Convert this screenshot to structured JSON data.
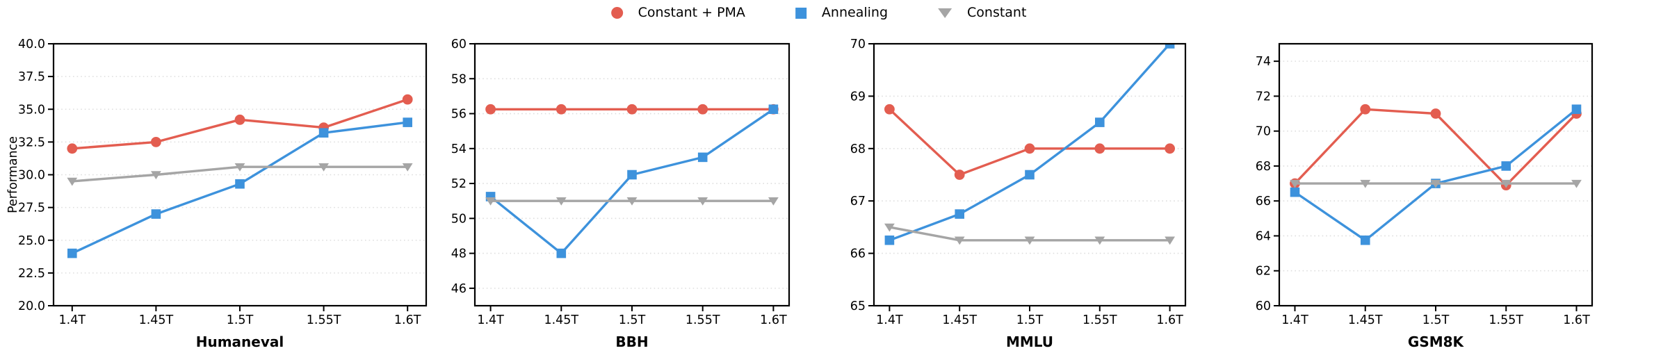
{
  "legend": {
    "items": [
      {
        "label": "Constant + PMA",
        "marker": "circle-marker-icon",
        "color": "#e35d50"
      },
      {
        "label": "Annealing",
        "marker": "square-marker-icon",
        "color": "#3d92dc"
      },
      {
        "label": "Constant",
        "marker": "triangle-down-marker-icon",
        "color": "#a5a5a5"
      }
    ]
  },
  "colors": {
    "constant_pma": "#e35d50",
    "annealing": "#3d92dc",
    "constant": "#a5a5a5",
    "grid": "#dedede",
    "axis": "#000000"
  },
  "chart_data": [
    {
      "type": "line",
      "title": "Humaneval",
      "ylabel": "Performance",
      "categories": [
        "1.4T",
        "1.45T",
        "1.5T",
        "1.55T",
        "1.6T"
      ],
      "ylim": [
        20,
        40
      ],
      "yticks": [
        20,
        22.5,
        25,
        27.5,
        30,
        32.5,
        35,
        37.5,
        40
      ],
      "ytick_labels": [
        "20.0",
        "22.5",
        "25.0",
        "27.5",
        "30.0",
        "32.5",
        "35.0",
        "37.5",
        "40.0"
      ],
      "grid": true,
      "legend_position": "figure-top-center",
      "series": [
        {
          "name": "Constant + PMA",
          "marker": "circle",
          "color": "#e35d50",
          "values": [
            32.0,
            32.5,
            34.2,
            33.6,
            35.75
          ]
        },
        {
          "name": "Annealing",
          "marker": "square",
          "color": "#3d92dc",
          "values": [
            24.0,
            27.0,
            29.3,
            33.2,
            34.0
          ]
        },
        {
          "name": "Constant",
          "marker": "triangle-down",
          "color": "#a5a5a5",
          "values": [
            29.5,
            30.0,
            30.6,
            30.6,
            30.6
          ]
        }
      ]
    },
    {
      "type": "line",
      "title": "BBH",
      "ylabel": "",
      "categories": [
        "1.4T",
        "1.45T",
        "1.5T",
        "1.55T",
        "1.6T"
      ],
      "ylim": [
        45,
        60
      ],
      "yticks": [
        46,
        48,
        50,
        52,
        54,
        56,
        58,
        60
      ],
      "ytick_labels": [
        "46",
        "48",
        "50",
        "52",
        "54",
        "56",
        "58",
        "60"
      ],
      "grid": true,
      "series": [
        {
          "name": "Constant + PMA",
          "marker": "circle",
          "color": "#e35d50",
          "values": [
            56.25,
            56.25,
            56.25,
            56.25,
            56.25
          ]
        },
        {
          "name": "Annealing",
          "marker": "square",
          "color": "#3d92dc",
          "values": [
            51.25,
            48.0,
            52.5,
            53.5,
            56.25
          ]
        },
        {
          "name": "Constant",
          "marker": "triangle-down",
          "color": "#a5a5a5",
          "values": [
            51.0,
            51.0,
            51.0,
            51.0,
            51.0
          ]
        }
      ]
    },
    {
      "type": "line",
      "title": "MMLU",
      "ylabel": "",
      "categories": [
        "1.4T",
        "1.45T",
        "1.5T",
        "1.55T",
        "1.6T"
      ],
      "ylim": [
        65,
        70
      ],
      "yticks": [
        65,
        66,
        67,
        68,
        69,
        70
      ],
      "ytick_labels": [
        "65",
        "66",
        "67",
        "68",
        "69",
        "70"
      ],
      "grid": true,
      "series": [
        {
          "name": "Constant + PMA",
          "marker": "circle",
          "color": "#e35d50",
          "values": [
            68.75,
            67.5,
            68.0,
            68.0,
            68.0
          ]
        },
        {
          "name": "Annealing",
          "marker": "square",
          "color": "#3d92dc",
          "values": [
            66.25,
            66.75,
            67.5,
            68.5,
            70.0
          ]
        },
        {
          "name": "Constant",
          "marker": "triangle-down",
          "color": "#a5a5a5",
          "values": [
            66.5,
            66.25,
            66.25,
            66.25,
            66.25
          ]
        }
      ]
    },
    {
      "type": "line",
      "title": "GSM8K",
      "ylabel": "",
      "categories": [
        "1.4T",
        "1.45T",
        "1.5T",
        "1.55T",
        "1.6T"
      ],
      "ylim": [
        60,
        75
      ],
      "yticks": [
        60,
        62,
        64,
        66,
        68,
        70,
        72,
        74
      ],
      "ytick_labels": [
        "60",
        "62",
        "64",
        "66",
        "68",
        "70",
        "72",
        "74"
      ],
      "grid": true,
      "series": [
        {
          "name": "Constant + PMA",
          "marker": "circle",
          "color": "#e35d50",
          "values": [
            67.0,
            71.25,
            71.0,
            66.9,
            71.0
          ]
        },
        {
          "name": "Annealing",
          "marker": "square",
          "color": "#3d92dc",
          "values": [
            66.5,
            63.75,
            67.0,
            68.0,
            71.25
          ]
        },
        {
          "name": "Constant",
          "marker": "triangle-down",
          "color": "#a5a5a5",
          "values": [
            67.0,
            67.0,
            67.0,
            67.0,
            67.0
          ]
        }
      ]
    }
  ]
}
